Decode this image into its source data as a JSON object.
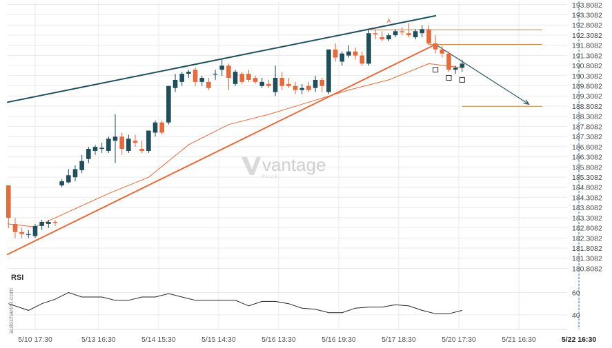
{
  "colors": {
    "bull": "#1f4f5c",
    "bear": "#e8693a",
    "trend_upper": "#1f4f5c",
    "trend_lower": "#e8693a",
    "ma": "#e8693a",
    "forecast": "#2c5866",
    "level": "#c9822f",
    "rsi": "#222222",
    "grid": "#e9e9e9",
    "marker": "#1f6fb2"
  },
  "watermark": {
    "brand": "vantage",
    "sub": "PLUS",
    "icon": "vantage-logo-icon"
  },
  "source_label": "autochartist.com",
  "chart_data": {
    "type": "candlestick",
    "y_ticks": [
      "193.8082",
      "193.3082",
      "192.8082",
      "192.3082",
      "191.8082",
      "191.3082",
      "190.8082",
      "190.3082",
      "189.8082",
      "189.3082",
      "188.8082",
      "188.3082",
      "187.8082",
      "187.3082",
      "186.8082",
      "186.3082",
      "185.8082",
      "185.3082",
      "184.8082",
      "184.3082",
      "183.8082",
      "183.3082",
      "182.8082",
      "182.3082",
      "181.8082",
      "181.3082",
      "180.8082"
    ],
    "ylim": [
      180.45,
      193.97
    ],
    "x_ticks": [
      "5/10 17:30",
      "5/13 16:30",
      "5/14 15:30",
      "5/15 14:30",
      "5/16 13:30",
      "5/16 19:30",
      "5/17 18:30",
      "5/20 17:30",
      "5/21 16:30",
      "5/22 16:30"
    ],
    "x_tick_index": [
      4,
      13.5,
      22.5,
      31.5,
      40.5,
      49.5,
      58.5,
      67.5,
      76.5,
      85.5
    ],
    "active_x_tick": "5/22 16:30",
    "candles": [
      [
        184.9,
        184.9,
        182.8,
        183.3
      ],
      [
        183.0,
        183.3,
        182.3,
        182.6
      ],
      [
        182.6,
        182.8,
        182.3,
        182.5
      ],
      [
        182.5,
        182.7,
        182.3,
        182.5
      ],
      [
        182.4,
        183.0,
        182.3,
        182.9
      ],
      [
        182.9,
        183.2,
        182.7,
        183.1
      ],
      [
        183.0,
        183.2,
        182.8,
        183.1
      ],
      [
        183.1,
        183.2,
        182.9,
        183.05
      ],
      [
        184.9,
        185.2,
        184.8,
        185.1
      ],
      [
        185.05,
        185.7,
        185.0,
        185.4
      ],
      [
        185.3,
        185.9,
        185.1,
        185.7
      ],
      [
        185.65,
        186.4,
        185.5,
        186.1
      ],
      [
        186.2,
        186.8,
        186.0,
        186.7
      ],
      [
        186.6,
        186.9,
        186.4,
        186.8
      ],
      [
        186.7,
        187.0,
        186.5,
        186.75
      ],
      [
        186.6,
        187.3,
        186.5,
        187.2
      ],
      [
        187.1,
        188.4,
        186.0,
        187.3
      ],
      [
        187.3,
        187.5,
        186.4,
        186.7
      ],
      [
        186.6,
        187.4,
        186.5,
        187.2
      ],
      [
        187.1,
        187.4,
        186.8,
        187.0
      ],
      [
        186.7,
        187.1,
        186.5,
        186.6
      ],
      [
        186.6,
        187.6,
        186.5,
        187.6
      ],
      [
        187.5,
        188.1,
        187.3,
        188.0
      ],
      [
        188.0,
        188.1,
        187.4,
        187.5
      ],
      [
        188.0,
        189.8,
        187.9,
        189.8
      ],
      [
        189.7,
        190.4,
        189.5,
        190.1
      ],
      [
        190.0,
        190.5,
        189.8,
        190.4
      ],
      [
        190.4,
        190.6,
        190.2,
        190.5
      ],
      [
        190.6,
        190.7,
        189.8,
        190.0
      ],
      [
        190.0,
        190.3,
        189.8,
        190.2
      ],
      [
        190.0,
        190.2,
        189.6,
        189.7
      ],
      [
        190.4,
        190.6,
        190.1,
        190.4
      ],
      [
        190.6,
        191.1,
        190.3,
        190.8
      ],
      [
        190.8,
        190.9,
        189.6,
        190.2
      ],
      [
        189.9,
        190.6,
        189.8,
        190.5
      ],
      [
        190.4,
        190.5,
        189.9,
        190.0
      ],
      [
        190.4,
        190.6,
        190.0,
        190.1
      ],
      [
        190.2,
        190.3,
        189.9,
        190.0
      ],
      [
        189.8,
        190.2,
        189.7,
        190.0
      ],
      [
        189.9,
        190.1,
        189.7,
        189.8
      ],
      [
        189.5,
        190.8,
        189.3,
        190.2
      ],
      [
        190.2,
        190.5,
        189.6,
        189.8
      ],
      [
        189.9,
        190.2,
        189.7,
        189.8
      ],
      [
        189.8,
        190.0,
        189.4,
        189.6
      ],
      [
        189.6,
        189.9,
        189.4,
        189.7
      ],
      [
        189.8,
        190.0,
        189.5,
        189.6
      ],
      [
        189.7,
        190.3,
        189.5,
        190.1
      ],
      [
        190.1,
        190.2,
        189.5,
        189.8
      ],
      [
        189.5,
        191.6,
        189.4,
        191.6
      ],
      [
        191.6,
        191.9,
        191.0,
        191.2
      ],
      [
        191.0,
        191.5,
        190.8,
        191.4
      ],
      [
        191.3,
        191.8,
        191.2,
        191.5
      ],
      [
        191.5,
        191.7,
        191.1,
        191.3
      ],
      [
        191.3,
        191.5,
        190.8,
        190.9
      ],
      [
        190.9,
        192.6,
        190.8,
        192.4
      ],
      [
        192.4,
        192.6,
        192.1,
        192.35
      ],
      [
        192.2,
        192.5,
        192.0,
        192.1
      ],
      [
        192.1,
        192.4,
        192.0,
        192.3
      ],
      [
        192.3,
        192.6,
        192.2,
        192.5
      ],
      [
        192.5,
        192.7,
        192.3,
        192.45
      ],
      [
        192.4,
        192.9,
        192.2,
        192.3
      ],
      [
        192.2,
        192.6,
        192.1,
        192.5
      ],
      [
        192.4,
        192.8,
        192.2,
        192.6
      ],
      [
        192.6,
        192.8,
        191.8,
        191.9
      ],
      [
        191.9,
        192.3,
        191.4,
        191.6
      ],
      [
        191.6,
        191.8,
        191.2,
        191.4
      ],
      [
        191.4,
        191.5,
        190.5,
        190.6
      ],
      [
        190.6,
        190.8,
        190.4,
        190.7
      ],
      [
        190.7,
        191.1,
        190.5,
        190.9
      ]
    ],
    "pattern_label": "A",
    "series": [
      {
        "kind": "trendline",
        "start": [
          0,
          189.0
        ],
        "end": [
          64,
          193.26
        ]
      },
      {
        "kind": "trendline",
        "start": [
          0,
          181.5
        ],
        "end": [
          64,
          191.85
        ]
      },
      {
        "kind": "moving_average",
        "points": [
          [
            0,
            183.0
          ],
          [
            4,
            182.85
          ],
          [
            9,
            183.6
          ],
          [
            15,
            184.5
          ],
          [
            21,
            185.3
          ],
          [
            27,
            186.9
          ],
          [
            33,
            187.9
          ],
          [
            39,
            188.4
          ],
          [
            45,
            189.0
          ],
          [
            51,
            189.6
          ],
          [
            57,
            190.1
          ],
          [
            63,
            190.9
          ],
          [
            68,
            190.7
          ]
        ]
      },
      {
        "kind": "level",
        "start": 54,
        "end": 80,
        "value": 192.57
      },
      {
        "kind": "level",
        "start": 63,
        "end": 80,
        "value": 191.85
      },
      {
        "kind": "level",
        "start": 68,
        "end": 80,
        "value": 188.8
      },
      {
        "kind": "forecast",
        "start": [
          64,
          191.85
        ],
        "end": [
          78,
          188.9
        ]
      }
    ],
    "pattern_markers": [
      [
        64,
        190.6
      ],
      [
        66,
        190.2
      ],
      [
        68,
        190.1
      ]
    ],
    "rsi": {
      "title": "RSI",
      "ylim": [
        27,
        72
      ],
      "ticks": [
        60,
        40
      ],
      "x": [
        0,
        3,
        5,
        7,
        9,
        11,
        12,
        13,
        14,
        16,
        18,
        20,
        22,
        24,
        26,
        28,
        30,
        32,
        34,
        36,
        38,
        40,
        42,
        44,
        46,
        48,
        50,
        52,
        54,
        56,
        58,
        60,
        62,
        64,
        66,
        68
      ],
      "values": [
        50,
        44,
        50,
        54,
        60,
        56,
        56,
        56,
        56,
        53,
        53,
        56,
        56,
        59,
        56,
        53,
        53,
        53,
        53,
        48,
        52,
        52,
        50,
        46,
        45,
        42,
        42,
        46,
        47,
        47,
        49,
        48,
        44,
        41,
        41,
        44
      ]
    }
  }
}
